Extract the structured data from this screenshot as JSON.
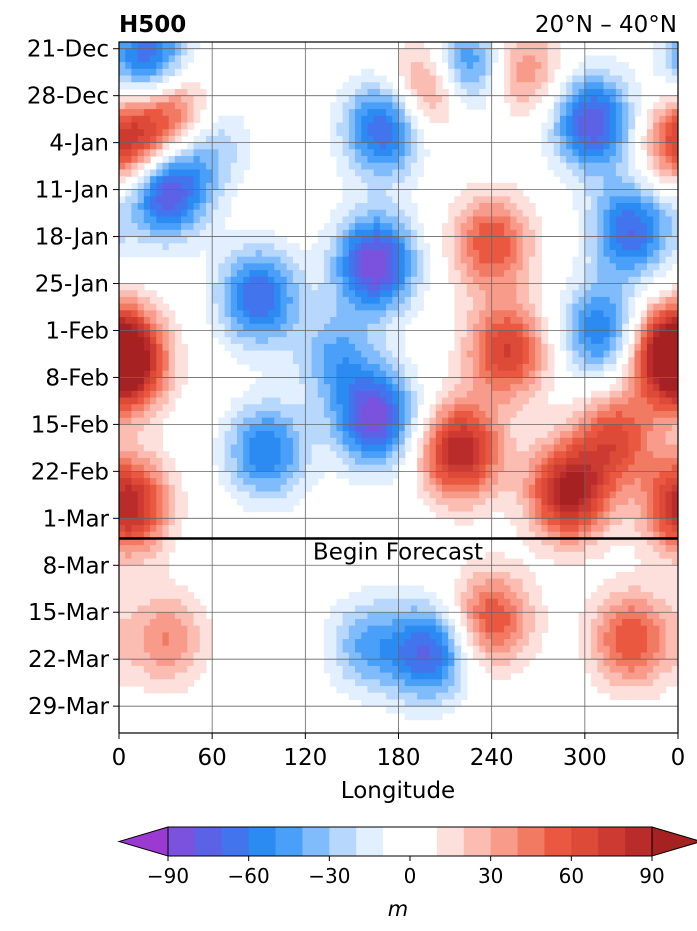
{
  "chart_data": {
    "type": "heatmap",
    "title": "H500",
    "subtitle": "20°N – 40°N",
    "xlabel": "Longitude",
    "ylabel": "",
    "x_ticks": [
      "0",
      "60",
      "120",
      "180",
      "240",
      "300",
      "0"
    ],
    "x_tick_values": [
      0,
      60,
      120,
      180,
      240,
      300,
      360
    ],
    "xlim": [
      0,
      360
    ],
    "y_ticks": [
      "21-Dec",
      "28-Dec",
      "4-Jan",
      "11-Jan",
      "18-Jan",
      "25-Jan",
      "1-Feb",
      "8-Feb",
      "15-Feb",
      "22-Feb",
      "1-Mar",
      "8-Mar",
      "15-Mar",
      "22-Mar",
      "29-Mar"
    ],
    "y_tick_days": [
      0,
      7,
      14,
      21,
      28,
      35,
      42,
      49,
      56,
      63,
      70,
      77,
      84,
      91,
      98
    ],
    "ylim_days": [
      -1,
      102
    ],
    "forecast_line_day": 73,
    "annotation": "Begin Forecast",
    "grid": true,
    "colorbar": {
      "label": "m",
      "levels": [
        -100,
        -90,
        -80,
        -70,
        -60,
        -50,
        -40,
        -30,
        -20,
        -10,
        0,
        10,
        20,
        30,
        40,
        50,
        60,
        70,
        80,
        90,
        100
      ],
      "tick_values": [
        -90,
        -60,
        -30,
        0,
        30,
        60,
        90
      ],
      "tick_labels": [
        "−90",
        "−60",
        "−30",
        "0",
        "30",
        "60",
        "90"
      ],
      "colors": [
        "#9b3ad0",
        "#7b52dd",
        "#5b62e6",
        "#4274ee",
        "#2b8bf3",
        "#4aa0f8",
        "#80bbfb",
        "#b7d7fd",
        "#e2efff",
        "#ffffff",
        "#ffffff",
        "#fde0db",
        "#fbbdb2",
        "#f99b8a",
        "#f27962",
        "#ea5841",
        "#de4a38",
        "#cc3a31",
        "#ba2c2c",
        "#a62222"
      ],
      "extend": "both"
    },
    "anomaly_features": [
      {
        "lon": 20,
        "day": 1,
        "value": -60
      },
      {
        "lon": 30,
        "day": 21,
        "value": -85
      },
      {
        "lon": 15,
        "day": 5,
        "value": -20
      },
      {
        "lon": 55,
        "day": 14,
        "value": -40
      },
      {
        "lon": 90,
        "day": 37,
        "value": -70
      },
      {
        "lon": 95,
        "day": 60,
        "value": -60
      },
      {
        "lon": 140,
        "day": 46,
        "value": -40
      },
      {
        "lon": 165,
        "day": 32,
        "value": -90
      },
      {
        "lon": 170,
        "day": 12,
        "value": -70
      },
      {
        "lon": 165,
        "day": 55,
        "value": -85
      },
      {
        "lon": 220,
        "day": 3,
        "value": -90
      },
      {
        "lon": 260,
        "day": 5,
        "value": -30
      },
      {
        "lon": 305,
        "day": 11,
        "value": -80
      },
      {
        "lon": 330,
        "day": 27,
        "value": -70
      },
      {
        "lon": 310,
        "day": 42,
        "value": -60
      },
      {
        "lon": 205,
        "day": 5,
        "value": 80
      },
      {
        "lon": 35,
        "day": 10,
        "value": 70
      },
      {
        "lon": 5,
        "day": 14,
        "value": 80
      },
      {
        "lon": 5,
        "day": 47,
        "value": 80
      },
      {
        "lon": 5,
        "day": 68,
        "value": 90
      },
      {
        "lon": 240,
        "day": 29,
        "value": 60
      },
      {
        "lon": 220,
        "day": 60,
        "value": 90
      },
      {
        "lon": 250,
        "day": 45,
        "value": 70
      },
      {
        "lon": 290,
        "day": 66,
        "value": 95
      },
      {
        "lon": 320,
        "day": 58,
        "value": 60
      },
      {
        "lon": 260,
        "day": 4,
        "value": 70
      },
      {
        "lon": 355,
        "day": 45,
        "value": 80
      },
      {
        "lon": 240,
        "day": 85,
        "value": 60
      },
      {
        "lon": 30,
        "day": 88,
        "value": 40
      },
      {
        "lon": 330,
        "day": 88,
        "value": 60
      },
      {
        "lon": 160,
        "day": 89,
        "value": -40
      },
      {
        "lon": 200,
        "day": 90,
        "value": -70
      }
    ]
  }
}
